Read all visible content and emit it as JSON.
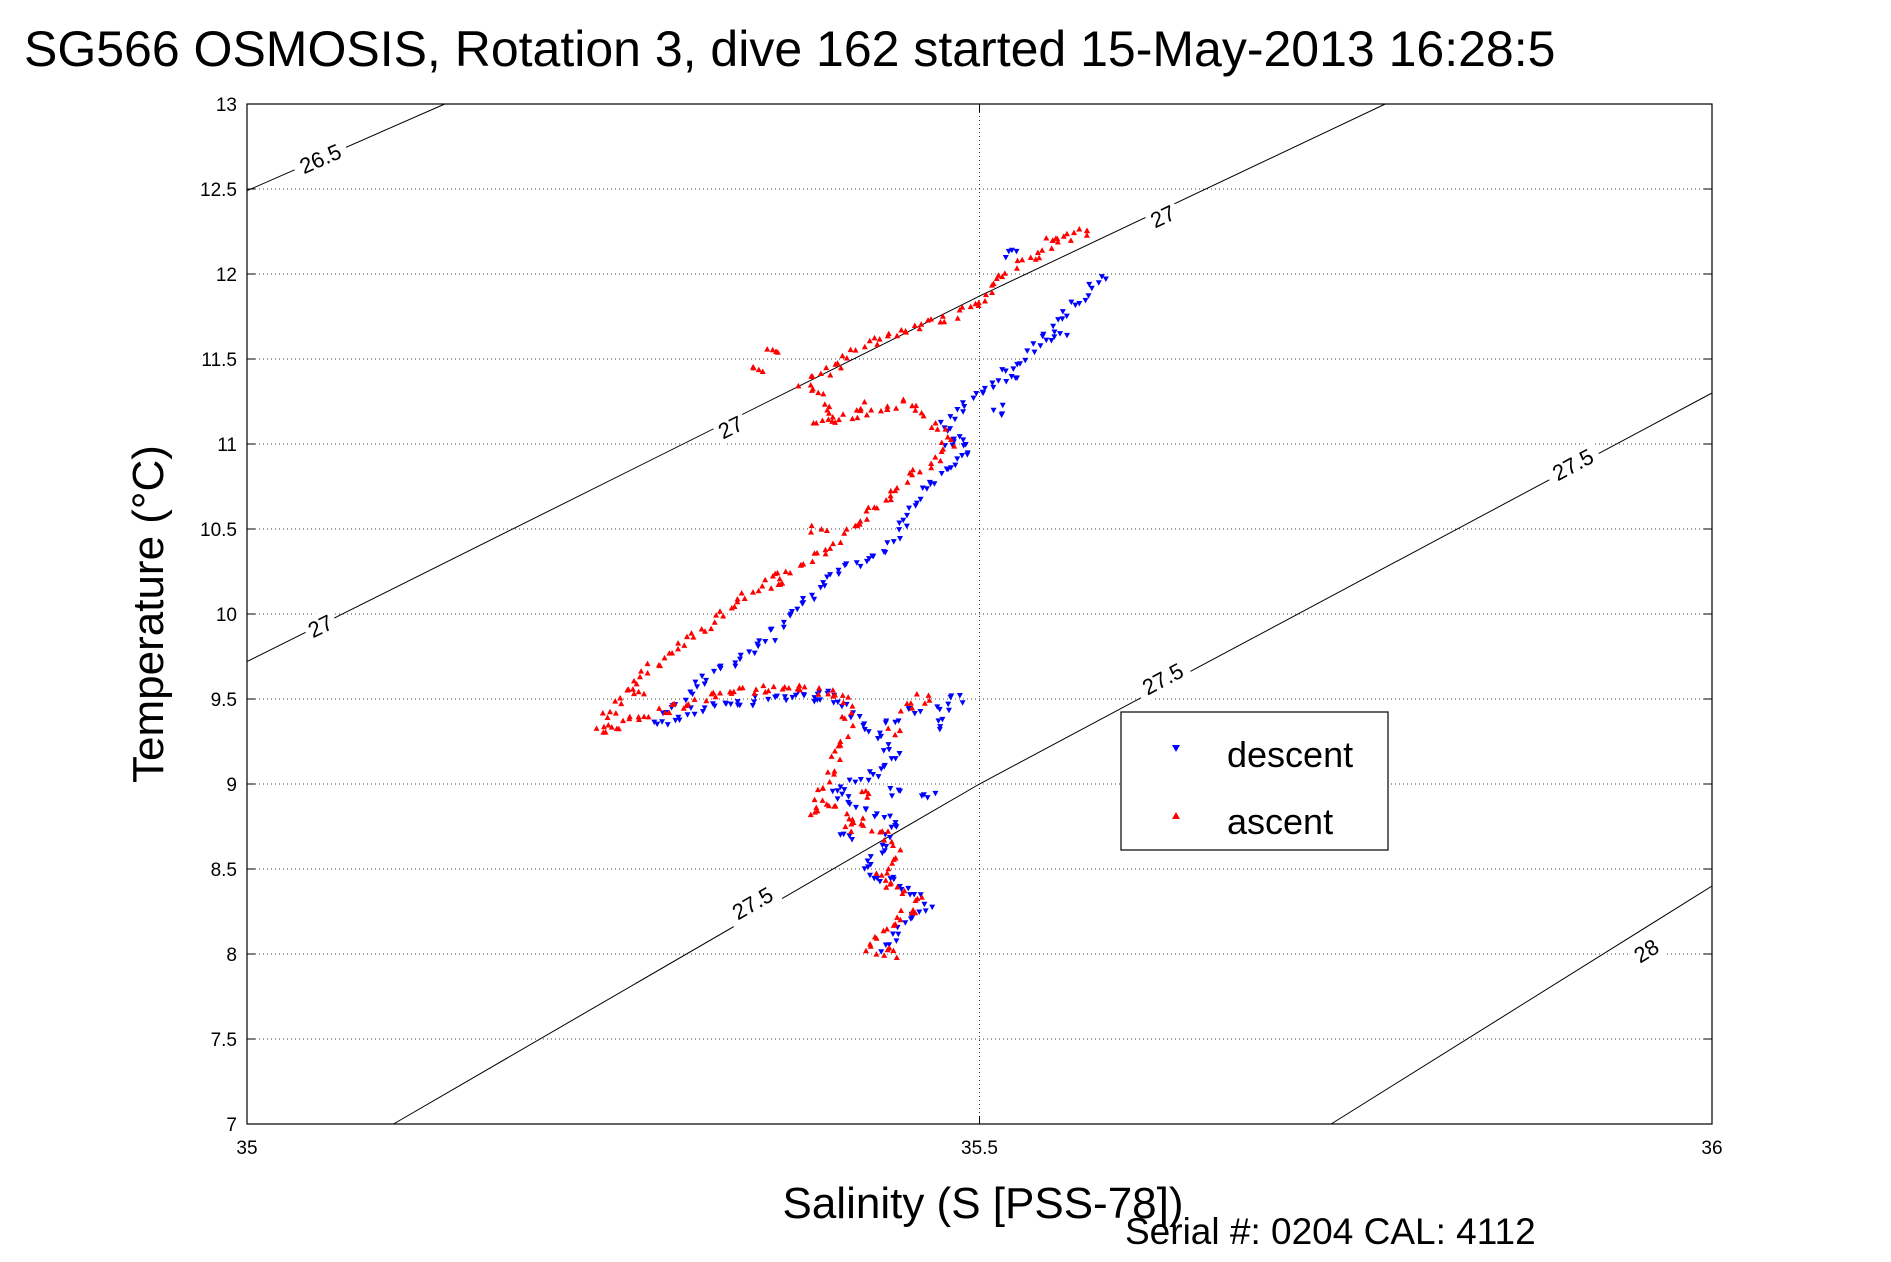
{
  "chart_data": {
    "type": "scatter",
    "title": "SG566 OSMOSIS, Rotation 3, dive 162 started 15-May-2013 16:28:5",
    "xlabel": "Salinity (S [PSS-78])",
    "ylabel": "Temperature (°C)",
    "xlim": [
      35,
      36
    ],
    "ylim": [
      7,
      13
    ],
    "x_ticks": [
      35,
      35.5,
      36
    ],
    "x_tick_labels": [
      "35",
      "35.5",
      "36"
    ],
    "y_ticks": [
      7,
      7.5,
      8,
      8.5,
      9,
      9.5,
      10,
      10.5,
      11,
      11.5,
      12,
      12.5,
      13
    ],
    "y_tick_labels": [
      "7",
      "7.5",
      "8",
      "8.5",
      "9",
      "9.5",
      "10",
      "10.5",
      "11",
      "11.5",
      "12",
      "12.5",
      "13"
    ],
    "grid": true,
    "legend_position": "right",
    "isopycnals": [
      {
        "label": "26.5",
        "points": [
          [
            35.0,
            12.49
          ],
          [
            35.135,
            13.0
          ]
        ],
        "labels_at": [
          [
            35.05,
            12.68
          ]
        ]
      },
      {
        "label": "27",
        "points": [
          [
            35.0,
            9.72
          ],
          [
            35.5,
            11.87
          ],
          [
            35.777,
            13.0
          ]
        ],
        "labels_at": [
          [
            35.05,
            9.93
          ],
          [
            35.33,
            11.1
          ],
          [
            35.625,
            12.34
          ]
        ]
      },
      {
        "label": "27.5",
        "points": [
          [
            35.1,
            7.0
          ],
          [
            35.5,
            9.0
          ],
          [
            36.0,
            11.3
          ]
        ],
        "labels_at": [
          [
            35.345,
            8.3
          ],
          [
            35.625,
            9.62
          ],
          [
            35.905,
            10.88
          ]
        ]
      },
      {
        "label": "28",
        "points": [
          [
            35.74,
            7.0
          ],
          [
            36.0,
            8.4
          ]
        ],
        "labels_at": [
          [
            35.955,
            8.02
          ]
        ]
      }
    ],
    "series": [
      {
        "name": "descent",
        "color": "#0000ff",
        "marker": "triangle-down",
        "path": [
          [
            35.585,
            11.98
          ],
          [
            35.56,
            11.78
          ],
          [
            35.535,
            11.55
          ],
          [
            35.5,
            11.3
          ],
          [
            35.475,
            11.1
          ],
          [
            35.495,
            10.95
          ],
          [
            35.46,
            10.72
          ],
          [
            35.44,
            10.4
          ],
          [
            35.4,
            10.22
          ],
          [
            35.37,
            10.0
          ],
          [
            35.35,
            9.8
          ],
          [
            35.31,
            9.6
          ],
          [
            35.29,
            9.45
          ],
          [
            35.28,
            9.35
          ],
          [
            35.32,
            9.46
          ],
          [
            35.36,
            9.5
          ],
          [
            35.39,
            9.55
          ],
          [
            35.41,
            9.45
          ],
          [
            35.43,
            9.3
          ],
          [
            35.445,
            9.15
          ],
          [
            35.425,
            9.05
          ],
          [
            35.4,
            8.95
          ],
          [
            35.42,
            8.85
          ],
          [
            35.445,
            8.75
          ],
          [
            35.43,
            8.6
          ],
          [
            35.42,
            8.48
          ],
          [
            35.445,
            8.42
          ],
          [
            35.465,
            8.3
          ],
          [
            35.445,
            8.12
          ],
          [
            35.43,
            8.02
          ]
        ],
        "extra": [
          [
            35.475,
            9.45
          ],
          [
            35.485,
            9.5
          ],
          [
            35.455,
            9.42
          ],
          [
            35.47,
            9.35
          ],
          [
            35.44,
            9.38
          ],
          [
            35.39,
            9.5
          ],
          [
            35.52,
            12.12
          ],
          [
            35.555,
            11.62
          ],
          [
            35.51,
            11.2
          ],
          [
            35.52,
            11.38
          ],
          [
            35.48,
            11.0
          ],
          [
            35.44,
            8.95
          ],
          [
            35.465,
            8.92
          ],
          [
            35.41,
            8.7
          ]
        ]
      },
      {
        "name": "ascent",
        "color": "#ff0000",
        "marker": "triangle-up",
        "path": [
          [
            35.565,
            12.25
          ],
          [
            35.535,
            12.1
          ],
          [
            35.51,
            11.98
          ],
          [
            35.5,
            11.83
          ],
          [
            35.47,
            11.72
          ],
          [
            35.43,
            11.62
          ],
          [
            35.41,
            11.5
          ],
          [
            35.38,
            11.35
          ],
          [
            35.4,
            11.22
          ],
          [
            35.39,
            11.12
          ],
          [
            35.43,
            11.2
          ],
          [
            35.45,
            11.25
          ],
          [
            35.47,
            11.12
          ],
          [
            35.48,
            10.98
          ],
          [
            35.45,
            10.78
          ],
          [
            35.42,
            10.55
          ],
          [
            35.38,
            10.3
          ],
          [
            35.34,
            10.1
          ],
          [
            35.31,
            9.9
          ],
          [
            35.27,
            9.65
          ],
          [
            35.25,
            9.45
          ],
          [
            35.24,
            9.3
          ],
          [
            35.29,
            9.45
          ],
          [
            35.33,
            9.55
          ],
          [
            35.37,
            9.57
          ],
          [
            35.41,
            9.52
          ],
          [
            35.41,
            9.3
          ],
          [
            35.4,
            9.1
          ],
          [
            35.39,
            8.92
          ],
          [
            35.41,
            8.82
          ],
          [
            35.435,
            8.7
          ],
          [
            35.445,
            8.6
          ],
          [
            35.43,
            8.45
          ],
          [
            35.45,
            8.38
          ],
          [
            35.46,
            8.3
          ],
          [
            35.445,
            8.2
          ],
          [
            35.43,
            8.1
          ],
          [
            35.425,
            8.02
          ],
          [
            35.45,
            8.0
          ]
        ],
        "extra": [
          [
            35.45,
            9.45
          ],
          [
            35.46,
            9.5
          ],
          [
            35.44,
            9.3
          ],
          [
            35.35,
            11.45
          ],
          [
            35.36,
            11.55
          ],
          [
            35.42,
            11.22
          ],
          [
            35.39,
            10.5
          ],
          [
            35.36,
            10.2
          ],
          [
            35.265,
            9.55
          ],
          [
            35.385,
            8.85
          ],
          [
            35.42,
            8.95
          ],
          [
            35.41,
            8.75
          ],
          [
            35.55,
            12.2
          ],
          [
            35.57,
            12.24
          ]
        ]
      }
    ]
  },
  "legend": {
    "items": [
      "descent",
      "ascent"
    ]
  },
  "footer": {
    "text": "Serial #: 0204  CAL: 4112"
  }
}
